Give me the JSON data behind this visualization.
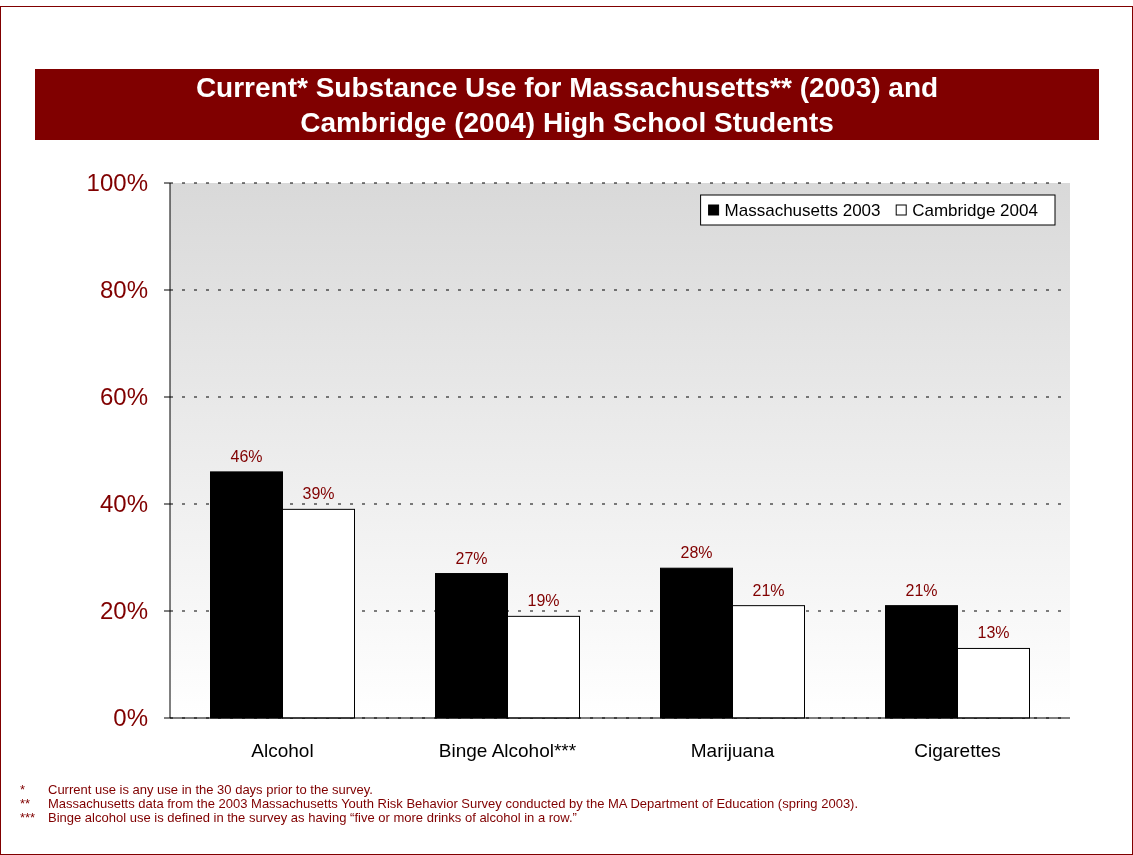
{
  "chart_data": {
    "type": "bar",
    "title": "Current* Substance Use for Massachusetts** (2003) and Cambridge (2004) High School Students",
    "categories": [
      "Alcohol",
      "Binge Alcohol***",
      "Marijuana",
      "Cigarettes"
    ],
    "series": [
      {
        "name": "Massachusetts 2003",
        "color": "#000000",
        "values": [
          46,
          27,
          28,
          21
        ],
        "value_labels": [
          "46%",
          "27%",
          "28%",
          "21%"
        ]
      },
      {
        "name": "Cambridge 2004",
        "color": "#ffffff",
        "values": [
          39,
          19,
          21,
          13
        ],
        "value_labels": [
          "39%",
          "19%",
          "21%",
          "13%"
        ]
      }
    ],
    "ylim": [
      0,
      100
    ],
    "yticks": [
      {
        "value": 0,
        "label": "0%"
      },
      {
        "value": 20,
        "label": "20%"
      },
      {
        "value": 40,
        "label": "40%"
      },
      {
        "value": 60,
        "label": "60%"
      },
      {
        "value": 80,
        "label": "80%"
      },
      {
        "value": 100,
        "label": "100%"
      }
    ],
    "grid": "y",
    "legend": "top right",
    "annotations": [
      "* Current use is any use in the 30 days prior to the survey.",
      "** Massachusetts data from the 2003 Massachusetts Youth Risk Behavior Survey conducted by the MA Department of Education (spring 2003).",
      "*** Binge alcohol use is defined in the survey as having “five or more drinks of alcohol in a row.”"
    ]
  }
}
